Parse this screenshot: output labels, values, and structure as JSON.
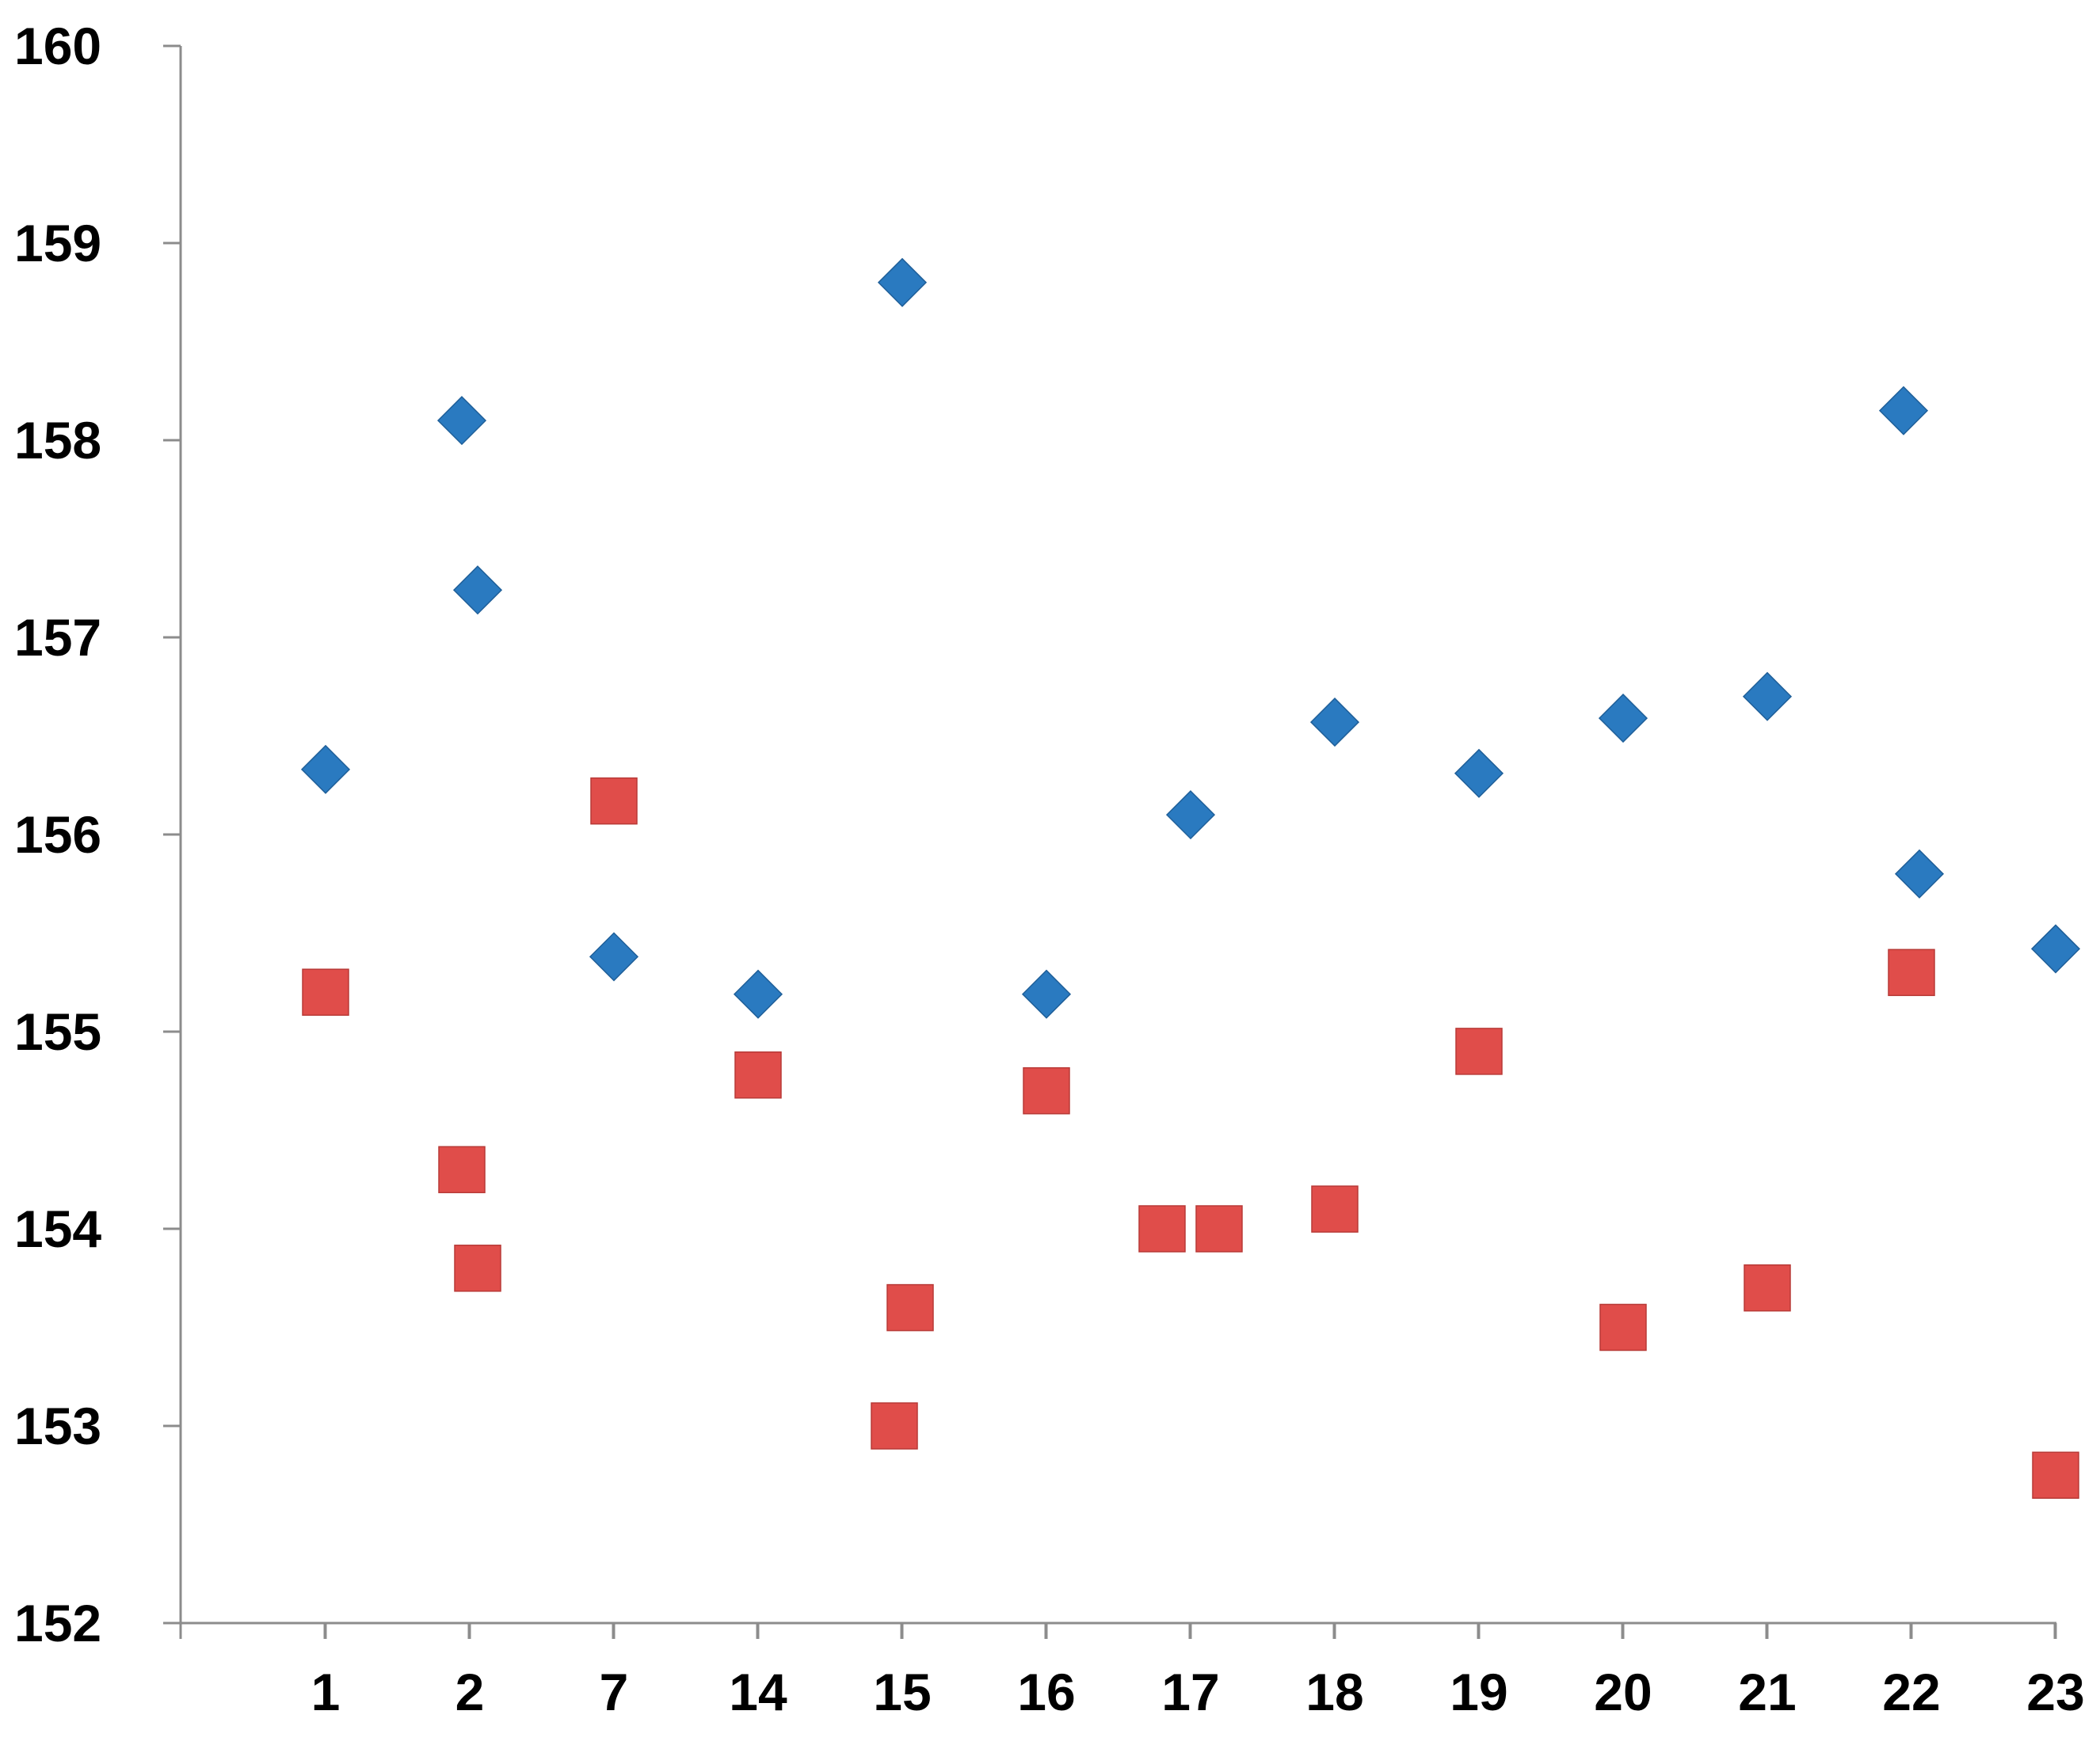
{
  "chart_data": {
    "type": "scatter",
    "title": "",
    "xlabel": "",
    "ylabel": "",
    "categories": [
      "1",
      "2",
      "7",
      "14",
      "15",
      "16",
      "17",
      "18",
      "19",
      "20",
      "21",
      "22",
      "23"
    ],
    "ylim": [
      152,
      160
    ],
    "yticks": [
      152,
      153,
      154,
      155,
      156,
      157,
      158,
      159,
      160
    ],
    "grid": false,
    "legend": "none",
    "series": [
      {
        "marker": "diamond",
        "color": "#2a7ac0",
        "points": [
          {
            "x": "1",
            "y": 156.33
          },
          {
            "x": "2",
            "y": 158.1
          },
          {
            "x": "2",
            "y": 157.24
          },
          {
            "x": "7",
            "y": 155.38
          },
          {
            "x": "14",
            "y": 155.19
          },
          {
            "x": "15",
            "y": 158.8
          },
          {
            "x": "16",
            "y": 155.19
          },
          {
            "x": "17",
            "y": 156.1
          },
          {
            "x": "18",
            "y": 156.57
          },
          {
            "x": "19",
            "y": 156.31
          },
          {
            "x": "20",
            "y": 156.59
          },
          {
            "x": "21",
            "y": 156.7
          },
          {
            "x": "22",
            "y": 158.15
          },
          {
            "x": "22",
            "y": 155.8
          },
          {
            "x": "23",
            "y": 155.42
          }
        ]
      },
      {
        "marker": "square",
        "color": "#e04d4a",
        "points": [
          {
            "x": "1",
            "y": 155.2
          },
          {
            "x": "2",
            "y": 154.3
          },
          {
            "x": "2",
            "y": 153.8
          },
          {
            "x": "7",
            "y": 156.17
          },
          {
            "x": "14",
            "y": 154.78
          },
          {
            "x": "15",
            "y": 153.0
          },
          {
            "x": "15",
            "y": 153.6
          },
          {
            "x": "16",
            "y": 154.7
          },
          {
            "x": "17",
            "y": 154.0
          },
          {
            "x": "17",
            "y": 154.0
          },
          {
            "x": "18",
            "y": 154.1
          },
          {
            "x": "19",
            "y": 154.9
          },
          {
            "x": "20",
            "y": 153.5
          },
          {
            "x": "21",
            "y": 153.7
          },
          {
            "x": "22",
            "y": 155.3
          },
          {
            "x": "23",
            "y": 152.75
          }
        ]
      }
    ]
  }
}
